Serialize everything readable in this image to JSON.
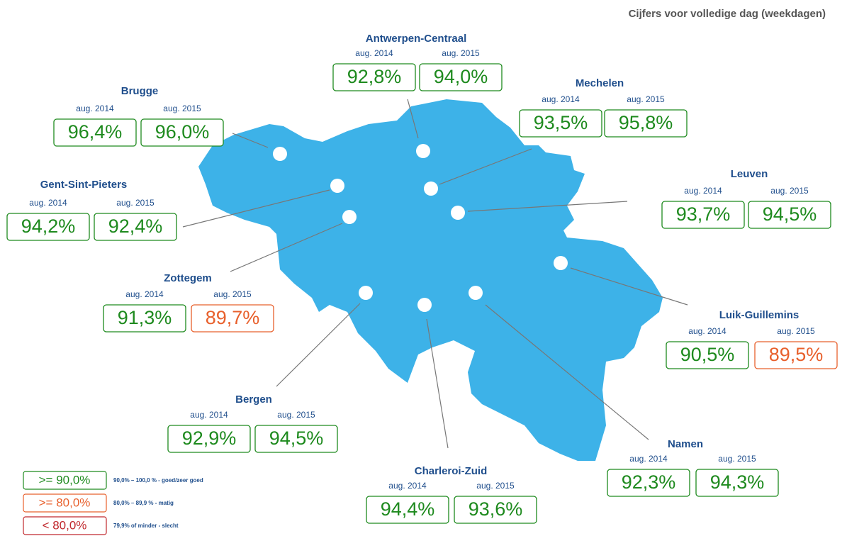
{
  "heading": "Cijfers voor volledige dag (weekdagen)",
  "stations": [
    {
      "name": "Antwerpen-Centraal",
      "values": [
        {
          "period": "aug. 2014",
          "text": "92,8%",
          "color": "#1e8a1e"
        },
        {
          "period": "aug. 2015",
          "text": "94,0%",
          "color": "#1e8a1e"
        }
      ]
    },
    {
      "name": "Brugge",
      "values": [
        {
          "period": "aug. 2014",
          "text": "96,4%",
          "color": "#1e8a1e"
        },
        {
          "period": "aug. 2015",
          "text": "96,0%",
          "color": "#1e8a1e"
        }
      ]
    },
    {
      "name": "Mechelen",
      "values": [
        {
          "period": "aug. 2014",
          "text": "93,5%",
          "color": "#1e8a1e"
        },
        {
          "period": "aug. 2015",
          "text": "95,8%",
          "color": "#1e8a1e"
        }
      ]
    },
    {
      "name": "Gent-Sint-Pieters",
      "values": [
        {
          "period": "aug. 2014",
          "text": "94,2%",
          "color": "#1e8a1e"
        },
        {
          "period": "aug. 2015",
          "text": "92,4%",
          "color": "#1e8a1e"
        }
      ]
    },
    {
      "name": "Leuven",
      "values": [
        {
          "period": "aug. 2014",
          "text": "93,7%",
          "color": "#1e8a1e"
        },
        {
          "period": "aug. 2015",
          "text": "94,5%",
          "color": "#1e8a1e"
        }
      ]
    },
    {
      "name": "Zottegem",
      "values": [
        {
          "period": "aug. 2014",
          "text": "91,3%",
          "color": "#1e8a1e"
        },
        {
          "period": "aug. 2015",
          "text": "89,7%",
          "color": "#e8602c"
        }
      ]
    },
    {
      "name": "Luik-Guillemins",
      "values": [
        {
          "period": "aug. 2014",
          "text": "90,5%",
          "color": "#1e8a1e"
        },
        {
          "period": "aug. 2015",
          "text": "89,5%",
          "color": "#e8602c"
        }
      ]
    },
    {
      "name": "Bergen",
      "values": [
        {
          "period": "aug. 2014",
          "text": "92,9%",
          "color": "#1e8a1e"
        },
        {
          "period": "aug. 2015",
          "text": "94,5%",
          "color": "#1e8a1e"
        }
      ]
    },
    {
      "name": "Charleroi-Zuid",
      "values": [
        {
          "period": "aug. 2014",
          "text": "94,4%",
          "color": "#1e8a1e"
        },
        {
          "period": "aug. 2015",
          "text": "93,6%",
          "color": "#1e8a1e"
        }
      ]
    },
    {
      "name": "Namen",
      "values": [
        {
          "period": "aug. 2014",
          "text": "92,3%",
          "color": "#1e8a1e"
        },
        {
          "period": "aug. 2015",
          "text": "94,3%",
          "color": "#1e8a1e"
        }
      ]
    }
  ],
  "legend": [
    {
      "label": ">= 90,0%",
      "description": "90,0% – 100,0 % - goed/zeer goed",
      "color": "#1e8a1e"
    },
    {
      "label": ">= 80,0%",
      "description": "80,0% – 89,9 % - matig",
      "color": "#e8602c"
    },
    {
      "label": "< 80,0%",
      "description": "79,9% of minder - slecht",
      "color": "#c0282d"
    }
  ]
}
